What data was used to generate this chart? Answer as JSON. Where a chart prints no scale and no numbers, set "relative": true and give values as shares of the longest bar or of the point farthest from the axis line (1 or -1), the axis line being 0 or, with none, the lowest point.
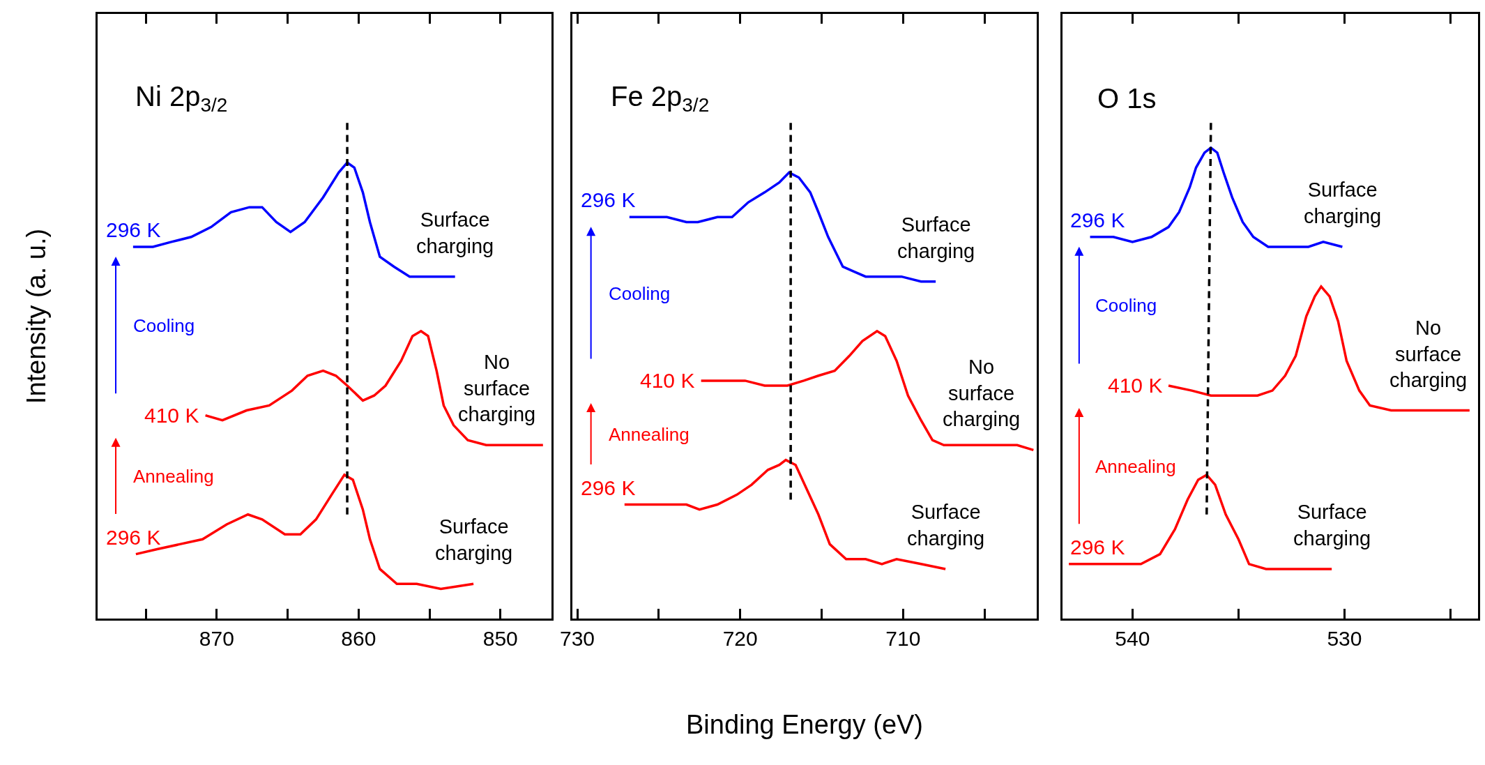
{
  "chart_data": [
    {
      "type": "line",
      "title": "Ni 2p$_{3/2}$",
      "ylabel": "Intensity (a. u.)",
      "relative": true,
      "tick_labels": "x",
      "xlim": [
        878.4,
        846.4
      ],
      "xticks": [
        {
          "value": 875,
          "label": null
        },
        870,
        {
          "value": 865,
          "label": null
        },
        860,
        {
          "value": 855,
          "label": null
        },
        850
      ],
      "series": [
        {
          "name": "296 K",
          "color": "#0000ff",
          "x": [
            875.9,
            874.5,
            873.2,
            871.8,
            870.4,
            869.0,
            867.7,
            866.8,
            865.8,
            864.8,
            863.8,
            862.5,
            861.4,
            860.8,
            860.3,
            859.7,
            859.2,
            858.5,
            857.5,
            856.4,
            855.1,
            853.2
          ],
          "values": [
            0.75,
            0.75,
            0.76,
            0.77,
            0.79,
            0.82,
            0.83,
            0.83,
            0.8,
            0.78,
            0.8,
            0.85,
            0.9,
            0.92,
            0.91,
            0.86,
            0.8,
            0.73,
            0.71,
            0.69,
            0.69,
            0.69
          ]
        },
        {
          "name": "410 K",
          "color": "#ff0000",
          "x": [
            870.8,
            869.6,
            867.9,
            866.3,
            864.7,
            863.6,
            862.5,
            861.6,
            860.8,
            859.7,
            858.9,
            858.1,
            857.0,
            856.2,
            855.6,
            855.1,
            854.5,
            854.0,
            853.3,
            852.3,
            851.0,
            849.6,
            847.9,
            847.0
          ],
          "values": [
            0.41,
            0.4,
            0.42,
            0.43,
            0.46,
            0.49,
            0.5,
            0.49,
            0.47,
            0.44,
            0.45,
            0.47,
            0.52,
            0.57,
            0.58,
            0.57,
            0.5,
            0.43,
            0.39,
            0.36,
            0.35,
            0.35,
            0.35,
            0.35
          ]
        },
        {
          "name": "296 K",
          "color": "#ff0000",
          "x": [
            875.7,
            874.2,
            872.6,
            871.0,
            869.3,
            867.8,
            866.8,
            865.2,
            864.1,
            863.0,
            861.9,
            861.0,
            860.4,
            859.7,
            859.2,
            858.5,
            857.3,
            855.9,
            854.2,
            851.9
          ],
          "values": [
            0.13,
            0.14,
            0.15,
            0.16,
            0.19,
            0.21,
            0.2,
            0.17,
            0.17,
            0.2,
            0.25,
            0.29,
            0.28,
            0.22,
            0.16,
            0.1,
            0.07,
            0.07,
            0.06,
            0.07
          ]
        },
        {
          "color": "#000000",
          "line_style": "dashed",
          "x": [
            860.8,
            860.8
          ],
          "values": [
            1.0,
            0.21
          ]
        }
      ],
      "annotations": [
        "Surface\ncharging",
        "No\nsurface\ncharging",
        "Surface\ncharging",
        "Cooling",
        "Annealing"
      ]
    },
    {
      "type": "line",
      "title": "Fe 2p$_{3/2}$",
      "xlabel": "Binding Energy (eV)",
      "relative": true,
      "tick_labels": "x",
      "xlim": [
        730.3,
        701.8
      ],
      "xticks": [
        730,
        {
          "value": 725,
          "label": null
        },
        720,
        {
          "value": 715,
          "label": null
        },
        710,
        {
          "value": 705,
          "label": null
        }
      ],
      "series": [
        {
          "name": "296 K",
          "color": "#0000ff",
          "x": [
            726.8,
            725.7,
            724.5,
            723.3,
            722.6,
            721.4,
            720.5,
            719.5,
            718.5,
            717.6,
            717.0,
            716.4,
            715.7,
            715.2,
            714.6,
            713.7,
            713.0,
            712.3,
            711.3,
            710.1,
            708.9,
            708.0
          ],
          "values": [
            0.81,
            0.81,
            0.81,
            0.8,
            0.8,
            0.81,
            0.81,
            0.84,
            0.86,
            0.88,
            0.9,
            0.89,
            0.86,
            0.82,
            0.77,
            0.71,
            0.7,
            0.69,
            0.69,
            0.69,
            0.68,
            0.68
          ]
        },
        {
          "name": "410 K",
          "color": "#ff0000",
          "x": [
            722.4,
            720.9,
            719.7,
            718.5,
            717.1,
            716.1,
            715.2,
            714.2,
            713.3,
            712.5,
            711.6,
            711.1,
            710.4,
            709.7,
            708.9,
            708.2,
            707.5,
            706.5,
            705.3,
            704.1,
            703.0,
            702.0
          ],
          "values": [
            0.48,
            0.48,
            0.48,
            0.47,
            0.47,
            0.48,
            0.49,
            0.5,
            0.53,
            0.56,
            0.58,
            0.57,
            0.52,
            0.45,
            0.4,
            0.36,
            0.35,
            0.35,
            0.35,
            0.35,
            0.35,
            0.34
          ]
        },
        {
          "name": "296 K",
          "color": "#ff0000",
          "x": [
            727.1,
            725.7,
            724.3,
            723.3,
            722.5,
            721.4,
            720.2,
            719.3,
            718.3,
            717.6,
            717.2,
            716.6,
            715.9,
            715.2,
            714.5,
            713.5,
            712.3,
            711.3,
            710.4,
            708.9,
            707.4
          ],
          "values": [
            0.23,
            0.23,
            0.23,
            0.23,
            0.22,
            0.23,
            0.25,
            0.27,
            0.3,
            0.31,
            0.32,
            0.31,
            0.26,
            0.21,
            0.15,
            0.12,
            0.12,
            0.11,
            0.12,
            0.11,
            0.1
          ]
        },
        {
          "color": "#000000",
          "line_style": "dashed",
          "x": [
            716.9,
            716.9
          ],
          "values": [
            1.0,
            0.24
          ]
        }
      ],
      "annotations": [
        "Surface\ncharging",
        "No\nsurface\ncharging",
        "Surface\ncharging",
        "Cooling",
        "Annealing"
      ]
    },
    {
      "type": "line",
      "title": "O 1s",
      "relative": true,
      "tick_labels": "x",
      "xlim": [
        543.3,
        523.7
      ],
      "xticks": [
        540,
        {
          "value": 535,
          "label": null
        },
        530,
        {
          "value": 525,
          "label": null
        }
      ],
      "series": [
        {
          "name": "296 K",
          "color": "#0000ff",
          "x": [
            542.0,
            540.9,
            540.0,
            539.1,
            538.3,
            537.8,
            537.3,
            537.0,
            536.6,
            536.3,
            536.0,
            535.7,
            535.3,
            534.8,
            534.3,
            533.6,
            532.6,
            531.7,
            531.0,
            530.1
          ],
          "values": [
            0.77,
            0.77,
            0.76,
            0.77,
            0.79,
            0.82,
            0.87,
            0.91,
            0.94,
            0.95,
            0.94,
            0.9,
            0.85,
            0.8,
            0.77,
            0.75,
            0.75,
            0.75,
            0.76,
            0.75
          ]
        },
        {
          "name": "410 K",
          "color": "#ff0000",
          "x": [
            538.3,
            537.2,
            536.3,
            535.2,
            534.1,
            533.4,
            532.8,
            532.3,
            531.8,
            531.4,
            531.1,
            530.7,
            530.3,
            529.9,
            529.3,
            528.8,
            527.8,
            526.2,
            524.1
          ],
          "values": [
            0.47,
            0.46,
            0.45,
            0.45,
            0.45,
            0.46,
            0.49,
            0.53,
            0.61,
            0.65,
            0.67,
            0.65,
            0.6,
            0.52,
            0.46,
            0.43,
            0.42,
            0.42,
            0.42
          ]
        },
        {
          "name": "296 K",
          "color": "#ff0000",
          "x": [
            543.0,
            541.8,
            540.7,
            539.6,
            538.7,
            538.0,
            537.4,
            536.9,
            536.5,
            536.1,
            535.6,
            535.0,
            534.5,
            533.7,
            532.8,
            531.7,
            530.6
          ],
          "values": [
            0.11,
            0.11,
            0.11,
            0.11,
            0.13,
            0.18,
            0.24,
            0.28,
            0.29,
            0.27,
            0.21,
            0.16,
            0.11,
            0.1,
            0.1,
            0.1,
            0.1
          ]
        },
        {
          "color": "#000000",
          "line_style": "dashed",
          "x": [
            536.3,
            536.5
          ],
          "values": [
            1.0,
            0.21
          ]
        }
      ],
      "annotations": [
        "Surface\ncharging",
        "No\nsurface\ncharging",
        "Surface\ncharging",
        "Cooling",
        "Annealing"
      ]
    }
  ]
}
